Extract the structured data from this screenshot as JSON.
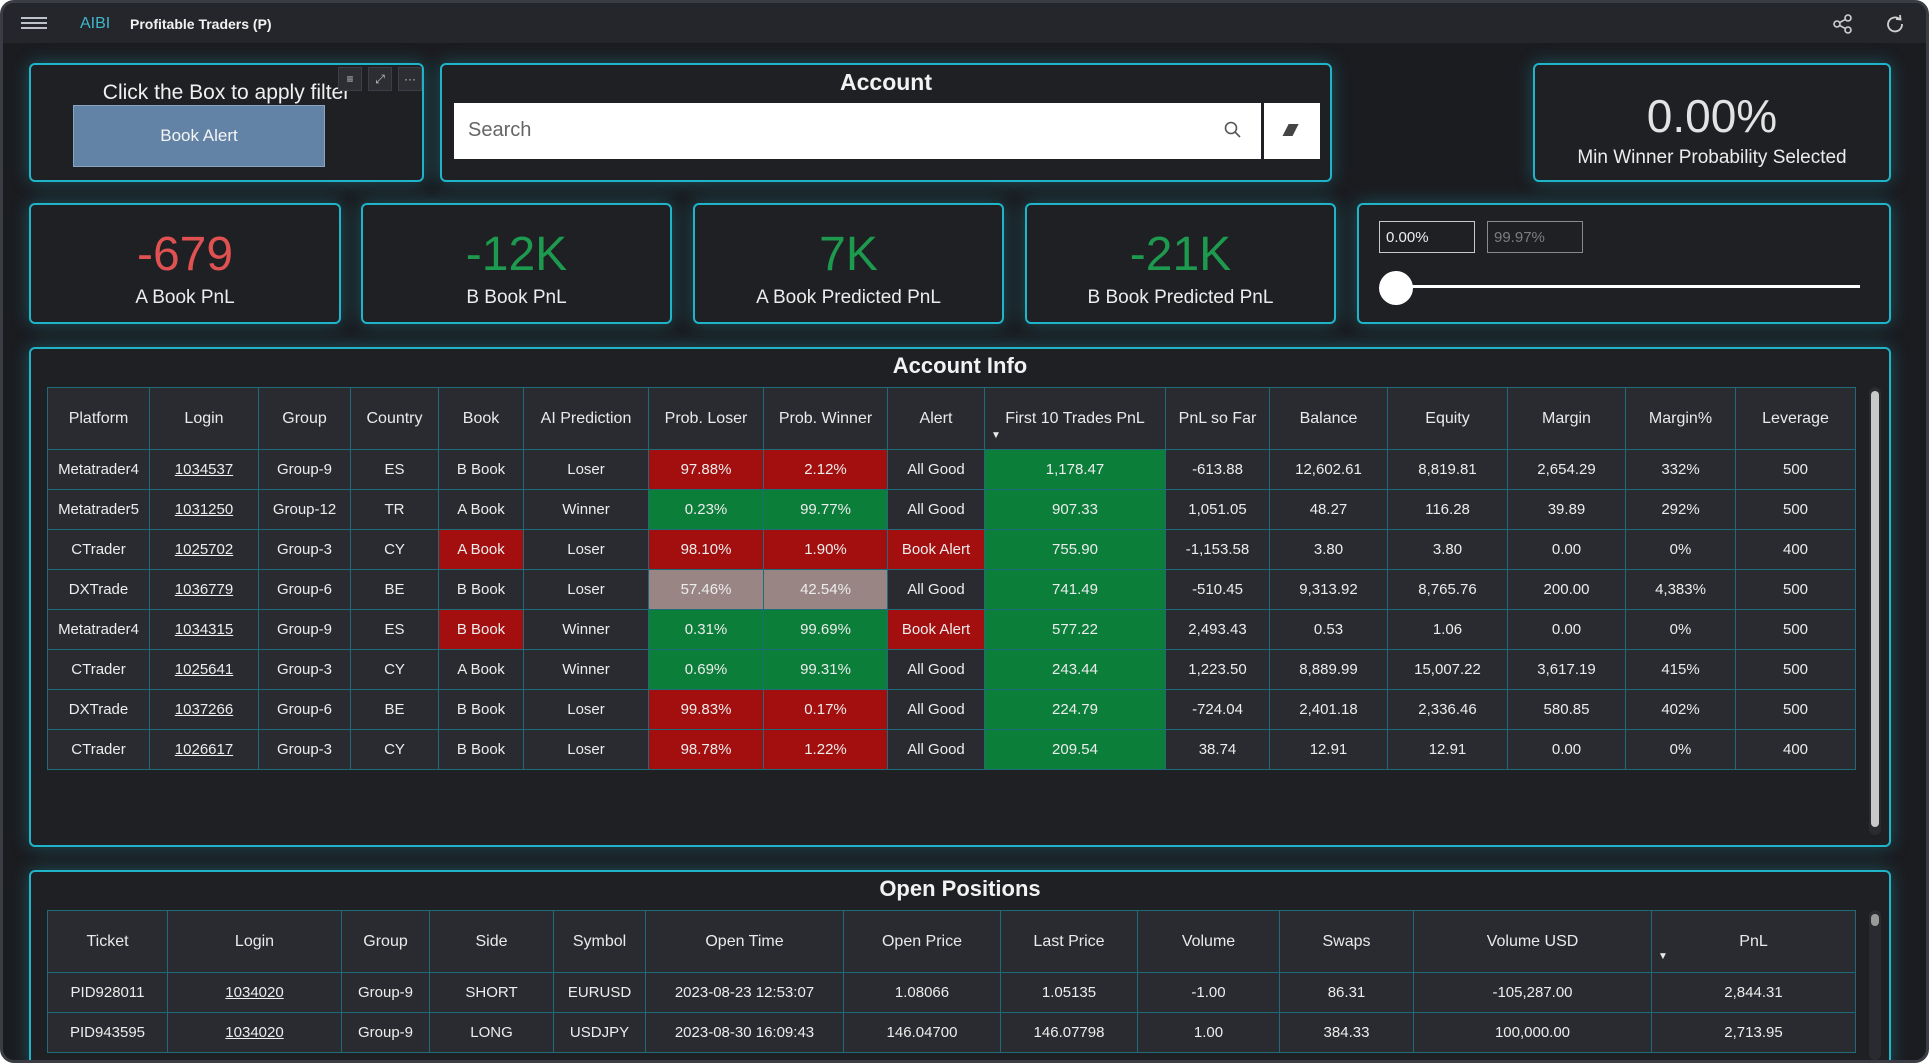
{
  "topbar": {
    "brand": "AIBI",
    "title": "Profitable Traders (P)"
  },
  "filter_card": {
    "title": "Click the Box to apply filter",
    "button": "Book Alert"
  },
  "account_card": {
    "title": "Account",
    "search_placeholder": "Search"
  },
  "min_prob_card": {
    "value": "0.00%",
    "label": "Min Winner Probability Selected"
  },
  "kpis": [
    {
      "value": "-679",
      "label": "A Book PnL",
      "color": "#e05252"
    },
    {
      "value": "-12K",
      "label": "B Book PnL",
      "color": "#1d9a4e"
    },
    {
      "value": "7K",
      "label": "A Book Predicted PnL",
      "color": "#1d9a4e"
    },
    {
      "value": "-21K",
      "label": "B Book Predicted PnL",
      "color": "#1d9a4e"
    }
  ],
  "range": {
    "min": "0.00%",
    "max": "99.97%",
    "slider_value": 0.0
  },
  "account_info": {
    "title": "Account Info",
    "columns": [
      "Platform",
      "Login",
      "Group",
      "Country",
      "Book",
      "AI Prediction",
      "Prob. Loser",
      "Prob. Winner",
      "Alert",
      "First 10 Trades PnL",
      "PnL so Far",
      "Balance",
      "Equity",
      "Margin",
      "Margin%",
      "Leverage"
    ],
    "rows": [
      [
        "Metatrader4",
        "1034537",
        "Group-9",
        "ES",
        "B Book",
        "Loser",
        "97.88%",
        "2.12%",
        "All Good",
        "1,178.47",
        "-613.88",
        "12,602.61",
        "8,819.81",
        "2,654.29",
        "332%",
        "500"
      ],
      [
        "Metatrader5",
        "1031250",
        "Group-12",
        "TR",
        "A Book",
        "Winner",
        "0.23%",
        "99.77%",
        "All Good",
        "907.33",
        "1,051.05",
        "48.27",
        "116.28",
        "39.89",
        "292%",
        "500"
      ],
      [
        "CTrader",
        "1025702",
        "Group-3",
        "CY",
        "A Book",
        "Loser",
        "98.10%",
        "1.90%",
        "Book Alert",
        "755.90",
        "-1,153.58",
        "3.80",
        "3.80",
        "0.00",
        "0%",
        "400"
      ],
      [
        "DXTrade",
        "1036779",
        "Group-6",
        "BE",
        "B Book",
        "Loser",
        "57.46%",
        "42.54%",
        "All Good",
        "741.49",
        "-510.45",
        "9,313.92",
        "8,765.76",
        "200.00",
        "4,383%",
        "500"
      ],
      [
        "Metatrader4",
        "1034315",
        "Group-9",
        "ES",
        "B Book",
        "Winner",
        "0.31%",
        "99.69%",
        "Book Alert",
        "577.22",
        "2,493.43",
        "0.53",
        "1.06",
        "0.00",
        "0%",
        "500"
      ],
      [
        "CTrader",
        "1025641",
        "Group-3",
        "CY",
        "A Book",
        "Winner",
        "0.69%",
        "99.31%",
        "All Good",
        "243.44",
        "1,223.50",
        "8,889.99",
        "15,007.22",
        "3,617.19",
        "415%",
        "500"
      ],
      [
        "DXTrade",
        "1037266",
        "Group-6",
        "BE",
        "B Book",
        "Loser",
        "99.83%",
        "0.17%",
        "All Good",
        "224.79",
        "-724.04",
        "2,401.18",
        "2,336.46",
        "580.85",
        "402%",
        "500"
      ],
      [
        "CTrader",
        "1026617",
        "Group-3",
        "CY",
        "B Book",
        "Loser",
        "98.78%",
        "1.22%",
        "All Good",
        "209.54",
        "38.74",
        "12.91",
        "12.91",
        "0.00",
        "0%",
        "400"
      ]
    ],
    "book_alert_rows": [
      2,
      4
    ],
    "prob_colors": [
      "red",
      "green",
      "red",
      "gray",
      "green",
      "green",
      "red",
      "red"
    ]
  },
  "open_positions": {
    "title": "Open Positions",
    "columns": [
      "Ticket",
      "Login",
      "Group",
      "Side",
      "Symbol",
      "Open Time",
      "Open Price",
      "Last Price",
      "Volume",
      "Swaps",
      "Volume USD",
      "PnL"
    ],
    "rows": [
      [
        "PID928011",
        "1034020",
        "Group-9",
        "SHORT",
        "EURUSD",
        "2023-08-23 12:53:07",
        "1.08066",
        "1.05135",
        "-1.00",
        "86.31",
        "-105,287.00",
        "2,844.31"
      ],
      [
        "PID943595",
        "1034020",
        "Group-9",
        "LONG",
        "USDJPY",
        "2023-08-30 16:09:43",
        "146.04700",
        "146.07798",
        "1.00",
        "384.33",
        "100,000.00",
        "2,713.95"
      ]
    ]
  },
  "colors": {
    "accent": "#1fb4c9",
    "cell_red": "#a30f0f",
    "cell_green": "#0b7e3a",
    "cell_gray": "#9a8585"
  }
}
